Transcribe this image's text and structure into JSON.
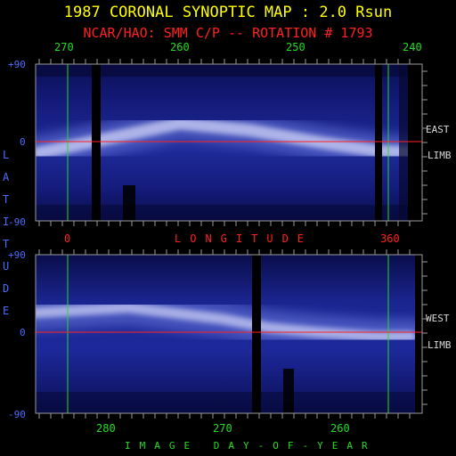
{
  "title": "1987 CORONAL SYNOPTIC MAP : 2.0 Rsun",
  "subtitle": "NCAR/HAO: SMM C/P -- ROTATION # 1793",
  "colors": {
    "background": "#000000",
    "title": "#ffff00",
    "subtitle": "#ff2020",
    "tick_labels_top": "#22dd22",
    "lat_labels": "#4a6cff",
    "longitude_label": "#ff2020",
    "day_label": "#22dd22",
    "reference_lines": "#22dd22",
    "equator_line": "#ff2020"
  },
  "lat_axis_label": "LATITUDE",
  "chart_data": [
    {
      "type": "heatmap",
      "panel": "top",
      "x_axis": "Carrington longitude (top scale)",
      "x_ticks": [
        "270",
        "260",
        "250",
        "240"
      ],
      "bottom_ticks": [
        "0",
        "360"
      ],
      "bottom_label": "LONGITUDE",
      "y_ticks": [
        "+90",
        "0",
        "-90"
      ],
      "ylim": [
        -90,
        90
      ],
      "side_label": [
        "EAST",
        "LIMB"
      ],
      "equator_line": 0,
      "bright_band": [
        {
          "lon": 272,
          "lat": -12
        },
        {
          "lon": 266,
          "lat": 5
        },
        {
          "lon": 260,
          "lat": 22
        },
        {
          "lon": 254,
          "lat": 14
        },
        {
          "lon": 248,
          "lat": 0
        },
        {
          "lon": 243,
          "lat": -10
        },
        {
          "lon": 239,
          "lat": -12
        }
      ]
    },
    {
      "type": "heatmap",
      "panel": "bottom",
      "x_axis": "image day-of-year",
      "x_ticks": [
        "280",
        "270",
        "260"
      ],
      "xlabel": "IMAGE DAY-OF-YEAR",
      "y_ticks": [
        "+90",
        "0",
        "-90"
      ],
      "ylim": [
        -90,
        90
      ],
      "side_label": [
        "WEST",
        "LIMB"
      ],
      "equator_line": 0,
      "bright_band": [
        {
          "day": 286,
          "lat": 22
        },
        {
          "day": 278,
          "lat": 28
        },
        {
          "day": 270,
          "lat": 15
        },
        {
          "day": 266,
          "lat": 5
        },
        {
          "day": 262,
          "lat": 0
        },
        {
          "day": 257,
          "lat": -5
        },
        {
          "day": 254,
          "lat": -5
        }
      ]
    }
  ]
}
